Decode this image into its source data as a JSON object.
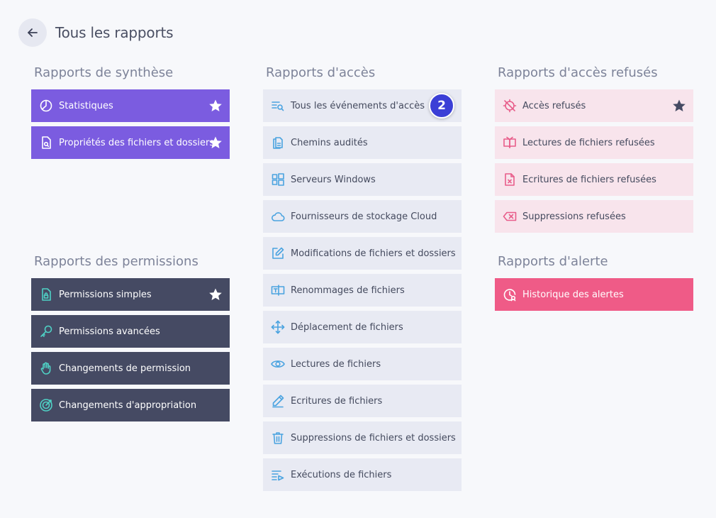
{
  "header": {
    "title": "Tous les rapports",
    "back_icon": "arrow-left-icon"
  },
  "sections": {
    "synthese": {
      "title": "Rapports de synthèse",
      "items": [
        {
          "label": "Statistiques",
          "icon": "pie-chart-icon",
          "starred": true
        },
        {
          "label": "Propriétés des fichiers et dossiers",
          "icon": "file-search-icon",
          "starred": true
        }
      ]
    },
    "permissions": {
      "title": "Rapports des permissions",
      "items": [
        {
          "label": "Permissions simples",
          "icon": "file-lock-icon",
          "starred": true
        },
        {
          "label": "Permissions avancées",
          "icon": "key-icon"
        },
        {
          "label": "Changements de permission",
          "icon": "hand-icon"
        },
        {
          "label": "Changements d'appropriation",
          "icon": "target-icon"
        }
      ]
    },
    "acces": {
      "title": "Rapports d'accès",
      "items": [
        {
          "label": "Tous les événements d'accès",
          "icon": "list-search-icon",
          "badge": "2"
        },
        {
          "label": "Chemins audités",
          "icon": "documents-icon"
        },
        {
          "label": "Serveurs Windows",
          "icon": "windows-icon"
        },
        {
          "label": "Fournisseurs de stockage Cloud",
          "icon": "cloud-icon"
        },
        {
          "label": "Modifications de fichiers et dossiers",
          "icon": "edit-icon"
        },
        {
          "label": "Renommages de fichiers",
          "icon": "rename-icon"
        },
        {
          "label": "Déplacement de fichiers",
          "icon": "move-icon"
        },
        {
          "label": "Lectures de fichiers",
          "icon": "eye-icon"
        },
        {
          "label": "Ecritures de fichiers",
          "icon": "pencil-icon"
        },
        {
          "label": "Suppressions de fichiers et dossiers",
          "icon": "trash-icon"
        },
        {
          "label": "Exécutions de fichiers",
          "icon": "list-play-icon"
        }
      ]
    },
    "refuses": {
      "title": "Rapports d'accès refusés",
      "items": [
        {
          "label": "Accès refusés",
          "icon": "blocked-icon",
          "starred": true
        },
        {
          "label": "Lectures de fichiers refusées",
          "icon": "book-icon"
        },
        {
          "label": "Ecritures de fichiers refusées",
          "icon": "file-x-icon"
        },
        {
          "label": "Suppressions refusées",
          "icon": "delete-key-icon"
        }
      ]
    },
    "alerte": {
      "title": "Rapports d'alerte",
      "items": [
        {
          "label": "Historique des alertes",
          "icon": "alert-history-icon"
        }
      ]
    }
  },
  "colors": {
    "summary": "#7b5ce0",
    "permissions": "#454a63",
    "access": "#e8eaf3",
    "denied": "#f8e4ec",
    "alert": "#ef5b87",
    "badge": "#3b3fd6"
  }
}
